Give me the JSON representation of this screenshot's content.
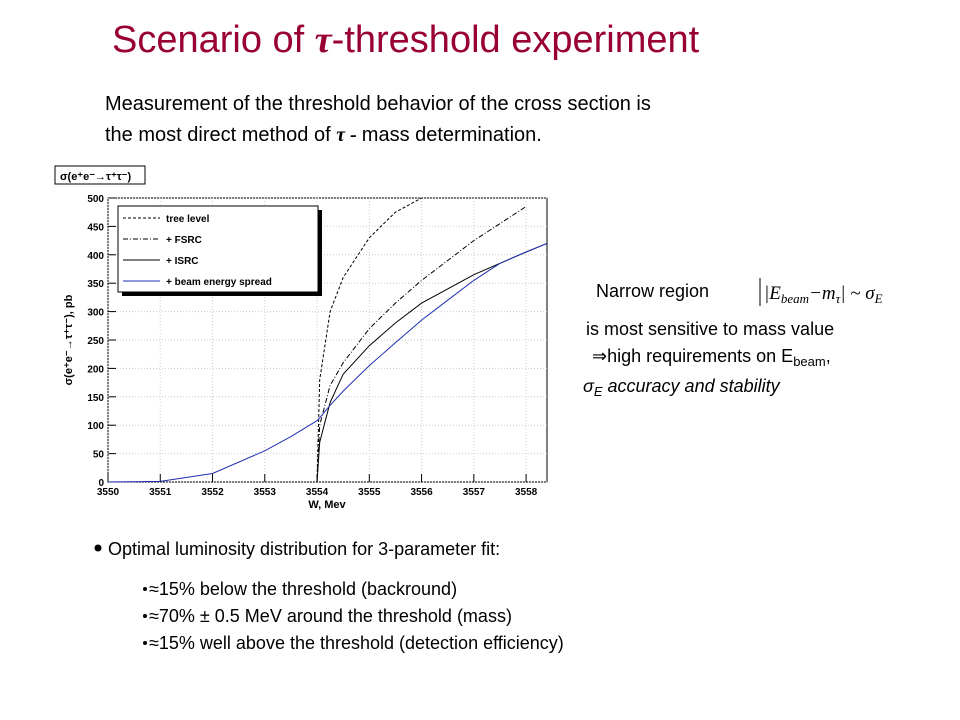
{
  "title": [
    "Scenario of ",
    "τ",
    "-threshold experiment"
  ],
  "intro": [
    "Measurement of the threshold behavior of the cross section is",
    "the most  direct method of ",
    "τ - ",
    "mass determination."
  ],
  "chart_data": {
    "type": "line",
    "box_label": "σ(e⁺e⁻→τ⁺τ⁻)",
    "x_label": "W, Mev",
    "y_label": "σ(e⁺e⁻→τ⁺τ⁻), pb",
    "x": [
      3550,
      3551,
      3552,
      3553,
      3553.5,
      3554,
      3554.05,
      3554.25,
      3554.5,
      3555,
      3555.5,
      3556,
      3556.5,
      3557,
      3557.5,
      3558,
      3558.4
    ],
    "series": [
      {
        "name": "tree level",
        "color": "#000000",
        "style": "dashed",
        "values": [
          null,
          null,
          null,
          null,
          null,
          0,
          180,
          300,
          360,
          430,
          475,
          500,
          null,
          null,
          null,
          null,
          null
        ]
      },
      {
        "name": "+ FSRC",
        "color": "#000000",
        "style": "dashdot",
        "values": [
          null,
          null,
          null,
          null,
          null,
          0,
          100,
          170,
          210,
          270,
          315,
          355,
          390,
          425,
          455,
          485,
          null
        ]
      },
      {
        "name": "+ ISRC",
        "color": "#000000",
        "style": "solid",
        "values": [
          null,
          null,
          null,
          null,
          null,
          0,
          70,
          140,
          190,
          240,
          280,
          315,
          340,
          365,
          385,
          405,
          420
        ]
      },
      {
        "name": "+ beam energy spread",
        "color": "#1f2fb0",
        "style": "solid",
        "values": [
          0,
          1,
          15,
          55,
          80,
          108,
          113,
          135,
          160,
          205,
          245,
          285,
          320,
          355,
          385,
          405,
          420
        ]
      }
    ],
    "xlim": [
      3550,
      3558.4
    ],
    "xticks": [
      3550,
      3551,
      3552,
      3553,
      3554,
      3555,
      3556,
      3557,
      3558
    ],
    "ylim": [
      0,
      500
    ],
    "yticks": [
      0,
      50,
      100,
      150,
      200,
      250,
      300,
      350,
      400,
      450,
      500
    ],
    "grid": true,
    "legend": "top-left"
  },
  "side": {
    "narrow": "Narrow region",
    "formula": [
      "|E",
      "beam",
      "−m",
      "τ",
      "| ~ σ",
      "E"
    ],
    "line1": "is most sensitive to mass value",
    "line2": [
      "⇒high requirements on E",
      "beam",
      ","
    ],
    "line3": [
      "σ",
      "E",
      " accuracy and stability"
    ]
  },
  "bullet": "Optimal luminosity distribution for 3-parameter fit:",
  "subbullets": [
    "≈15% below the threshold (backround)",
    "≈70% ± 0.5 MeV around the threshold (mass)",
    "≈15% well above the threshold (detection efficiency)"
  ]
}
